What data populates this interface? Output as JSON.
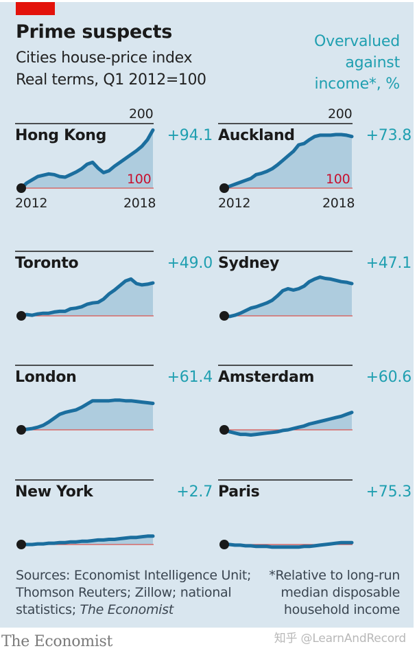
{
  "header": {
    "title": "Prime suspects",
    "subtitle": "Cities house-price index",
    "subtitle2": "Real terms, Q1 2012=100",
    "right_label_lines": [
      "Overvalued",
      "against",
      "income*, %"
    ]
  },
  "axis": {
    "top_tick": "200",
    "base_tick": "100",
    "x_start": "2012",
    "x_end": "2018"
  },
  "footer": {
    "sources_lines": [
      "Sources: Economist Intelligence Unit;",
      "Thomson Reuters; Zillow; national",
      "statistics; "
    ],
    "sources_italic": "The Economist",
    "note_lines": [
      "*Relative to long-run",
      "median disposable",
      "household income"
    ],
    "brand": "The Economist",
    "watermark": "知乎 @LearnAndRecord"
  },
  "colors": {
    "background": "#d9e6ef",
    "line": "#1b6e9e",
    "area": "#a9c9dc",
    "baseline": "#d9534f",
    "value_text": "#1f9fb0",
    "brand_red": "#e3120b"
  },
  "chart_data": {
    "type": "area",
    "title": "Prime suspects",
    "subtitle": "Cities house-price index; Real terms, Q1 2012=100",
    "xlabel": "",
    "ylabel": "Index, Q1 2012=100",
    "x_range": [
      "2012",
      "2018"
    ],
    "ylim": [
      100,
      200
    ],
    "grid": false,
    "legend": "none",
    "annotation": "Overvalued against income*, %",
    "series": [
      {
        "name": "Hong Kong",
        "overvalued_pct": "+94.1",
        "values": [
          100,
          108,
          113,
          118,
          120,
          122,
          121,
          118,
          117,
          121,
          125,
          130,
          137,
          140,
          131,
          124,
          127,
          134,
          140,
          146,
          152,
          158,
          165,
          175,
          190
        ]
      },
      {
        "name": "Auckland",
        "overvalued_pct": "+73.8",
        "values": [
          100,
          103,
          106,
          109,
          112,
          115,
          121,
          123,
          126,
          130,
          136,
          143,
          150,
          157,
          167,
          169,
          175,
          180,
          182,
          182,
          182,
          183,
          183,
          182,
          180
        ]
      },
      {
        "name": "Toronto",
        "overvalued_pct": "+49.0",
        "values": [
          100,
          102,
          101,
          103,
          104,
          104,
          106,
          107,
          107,
          111,
          112,
          114,
          118,
          120,
          121,
          126,
          134,
          140,
          147,
          154,
          157,
          150,
          148,
          149,
          151
        ]
      },
      {
        "name": "Sydney",
        "overvalued_pct": "+47.1",
        "values": [
          100,
          99,
          101,
          104,
          108,
          112,
          114,
          117,
          120,
          124,
          131,
          139,
          142,
          140,
          142,
          146,
          153,
          157,
          160,
          158,
          157,
          155,
          153,
          152,
          150
        ]
      },
      {
        "name": "London",
        "overvalued_pct": "+61.4",
        "values": [
          100,
          101,
          102,
          104,
          107,
          112,
          118,
          124,
          127,
          129,
          131,
          135,
          140,
          145,
          145,
          145,
          145,
          146,
          146,
          145,
          145,
          144,
          143,
          142,
          141
        ]
      },
      {
        "name": "Amsterdam",
        "overvalued_pct": "+60.6",
        "values": [
          100,
          97,
          95,
          93,
          93,
          92,
          93,
          94,
          95,
          96,
          97,
          99,
          100,
          102,
          104,
          106,
          109,
          111,
          113,
          115,
          117,
          119,
          121,
          124,
          127
        ]
      },
      {
        "name": "New York",
        "overvalued_pct": "+2.7",
        "values": [
          100,
          100,
          100,
          101,
          101,
          102,
          102,
          103,
          103,
          104,
          104,
          105,
          105,
          106,
          107,
          107,
          108,
          108,
          109,
          110,
          111,
          111,
          112,
          113,
          113
        ]
      },
      {
        "name": "Paris",
        "overvalued_pct": "+75.3",
        "values": [
          100,
          100,
          99,
          99,
          98,
          98,
          97,
          97,
          97,
          96,
          96,
          96,
          96,
          96,
          96,
          97,
          97,
          98,
          99,
          100,
          101,
          102,
          103,
          103,
          103
        ]
      }
    ]
  },
  "charts": [
    {
      "name": "Hong Kong",
      "value": "+94.1"
    },
    {
      "name": "Auckland",
      "value": "+73.8"
    },
    {
      "name": "Toronto",
      "value": "+49.0"
    },
    {
      "name": "Sydney",
      "value": "+47.1"
    },
    {
      "name": "London",
      "value": "+61.4"
    },
    {
      "name": "Amsterdam",
      "value": "+60.6"
    },
    {
      "name": "New York",
      "value": "+2.7"
    },
    {
      "name": "Paris",
      "value": "+75.3"
    }
  ]
}
